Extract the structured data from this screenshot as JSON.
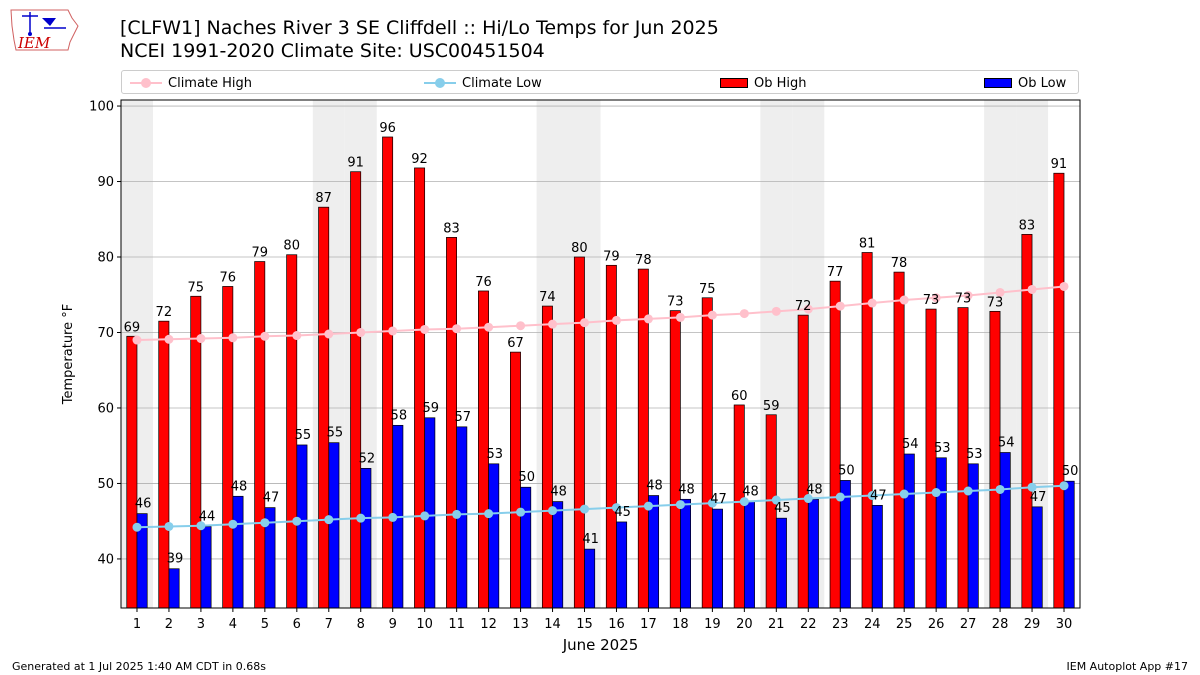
{
  "logo_text": "IEM",
  "title_line1": "[CLFW1] Naches River 3 SE Cliffdell :: Hi/Lo Temps for Jun 2025",
  "title_line2": "NCEI 1991-2020 Climate Site: USC00451504",
  "legend": {
    "climate_high": "Climate High",
    "climate_low": "Climate Low",
    "ob_high": "Ob High",
    "ob_low": "Ob Low"
  },
  "colors": {
    "climate_high": "#ffc0cb",
    "climate_low": "#87ceeb",
    "ob_high": "#ff0000",
    "ob_low": "#0000ff",
    "weekend_shade": "#eeeeee",
    "grid": "#b0b0b0"
  },
  "footer": {
    "generated": "Generated at 1 Jul 2025 1:40 AM CDT in 0.68s",
    "app": "IEM Autoplot App #17"
  },
  "chart_data": {
    "type": "bar",
    "title": "[CLFW1] Naches River 3 SE Cliffdell :: Hi/Lo Temps for Jun 2025",
    "subtitle": "NCEI 1991-2020 Climate Site: USC00451504",
    "xlabel": "June 2025",
    "ylabel": "Temperature °F",
    "ylim": [
      33.5,
      100.8
    ],
    "yticks": [
      40,
      50,
      60,
      70,
      80,
      90,
      100
    ],
    "grid": true,
    "legend_position": "top",
    "categories": [
      "1",
      "2",
      "3",
      "4",
      "5",
      "6",
      "7",
      "8",
      "9",
      "10",
      "11",
      "12",
      "13",
      "14",
      "15",
      "16",
      "17",
      "18",
      "19",
      "20",
      "21",
      "22",
      "23",
      "24",
      "25",
      "26",
      "27",
      "28",
      "29",
      "30"
    ],
    "shaded_days": [
      1,
      7,
      8,
      14,
      15,
      21,
      22,
      28,
      29
    ],
    "series": [
      {
        "name": "Ob High",
        "kind": "bar",
        "values": [
          69.5,
          71.5,
          74.8,
          76.1,
          79.4,
          80.3,
          86.6,
          91.3,
          95.9,
          91.8,
          82.6,
          75.5,
          67.4,
          73.5,
          80.0,
          78.9,
          78.4,
          72.9,
          74.6,
          60.4,
          59.1,
          72.3,
          76.8,
          80.6,
          78.0,
          73.1,
          73.3,
          72.8,
          83.0,
          91.1
        ],
        "labels": [
          "69",
          "72",
          "75",
          "76",
          "79",
          "80",
          "87",
          "91",
          "96",
          "92",
          "83",
          "76",
          "67",
          "74",
          "80",
          "79",
          "78",
          "73",
          "75",
          "60",
          "59",
          "72",
          "77",
          "81",
          "78",
          "73",
          "73",
          "73",
          "83",
          "91"
        ]
      },
      {
        "name": "Ob Low",
        "kind": "bar",
        "values": [
          46.0,
          38.7,
          44.3,
          48.3,
          46.8,
          55.1,
          55.4,
          52.0,
          57.7,
          58.7,
          57.5,
          52.6,
          49.5,
          47.6,
          41.3,
          44.9,
          48.4,
          47.9,
          46.6,
          47.6,
          45.4,
          47.9,
          50.4,
          47.1,
          53.9,
          53.4,
          52.6,
          54.1,
          46.9,
          50.3
        ],
        "labels": [
          "46",
          "39",
          "44",
          "48",
          "47",
          "55",
          "55",
          "52",
          "58",
          "59",
          "57",
          "53",
          "50",
          "48",
          "41",
          "45",
          "48",
          "48",
          "47",
          "48",
          "45",
          "48",
          "50",
          "47",
          "54",
          "53",
          "53",
          "54",
          "47",
          "50"
        ]
      },
      {
        "name": "Climate High",
        "kind": "line",
        "values": [
          69.0,
          69.1,
          69.2,
          69.3,
          69.5,
          69.6,
          69.8,
          70.0,
          70.2,
          70.4,
          70.5,
          70.7,
          70.9,
          71.1,
          71.3,
          71.6,
          71.8,
          72.0,
          72.3,
          72.5,
          72.8,
          73.1,
          73.5,
          73.9,
          74.3,
          74.6,
          74.9,
          75.3,
          75.7,
          76.1
        ]
      },
      {
        "name": "Climate Low",
        "kind": "line",
        "values": [
          44.2,
          44.3,
          44.4,
          44.6,
          44.8,
          45.0,
          45.2,
          45.4,
          45.5,
          45.7,
          45.9,
          46.0,
          46.2,
          46.4,
          46.6,
          46.8,
          47.0,
          47.2,
          47.4,
          47.6,
          47.8,
          48.0,
          48.2,
          48.4,
          48.6,
          48.8,
          49.0,
          49.2,
          49.5,
          49.7
        ]
      }
    ]
  }
}
